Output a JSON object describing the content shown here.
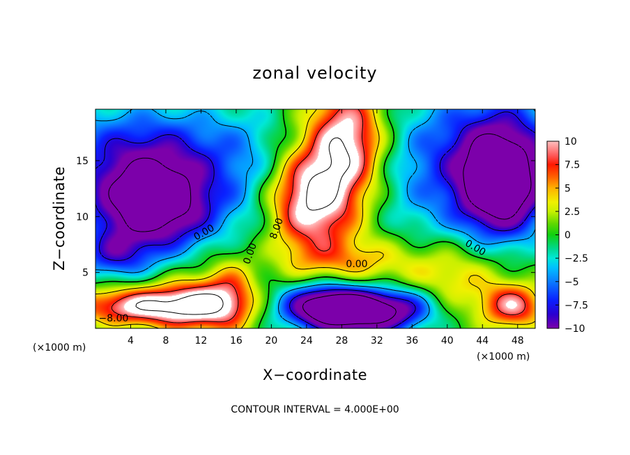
{
  "chart_data": {
    "type": "heatmap",
    "title": "zonal velocity",
    "xlabel": "X−coordinate",
    "ylabel": "Z−coordinate",
    "x_unit_left": "(×1000 m)",
    "x_unit_right": "(×1000 m)",
    "xlim": [
      0,
      50
    ],
    "ylim": [
      0,
      19.6
    ],
    "xticks": [
      4,
      8,
      12,
      16,
      20,
      24,
      28,
      32,
      36,
      40,
      44,
      48
    ],
    "yticks": [
      5,
      10,
      15
    ],
    "colorbar": {
      "range": [
        -10,
        10
      ],
      "ticks": [
        "10",
        "7.5",
        "5",
        "2.5",
        "0",
        "−2.5",
        "−5",
        "−7.5",
        "−10"
      ],
      "stops": [
        [
          -10,
          "#7c00aa"
        ],
        [
          -8.5,
          "#2a00d0"
        ],
        [
          -7,
          "#0a20ff"
        ],
        [
          -5,
          "#0a7cff"
        ],
        [
          -3.5,
          "#00c0ff"
        ],
        [
          -2.5,
          "#00e8d8"
        ],
        [
          -1.5,
          "#00d890"
        ],
        [
          0,
          "#10d010"
        ],
        [
          1.2,
          "#60d800"
        ],
        [
          2.5,
          "#c8f000"
        ],
        [
          3.5,
          "#f0f000"
        ],
        [
          5,
          "#ffb000"
        ],
        [
          6.2,
          "#ff6000"
        ],
        [
          7.5,
          "#ff1800"
        ],
        [
          8.5,
          "#ff5a5a"
        ],
        [
          10,
          "#ffc0c0"
        ]
      ],
      "above_max_color": "#ffffff"
    },
    "field_features": [
      {
        "x": 24.5,
        "z": 11.5,
        "u": 12.0,
        "sx": 3.5,
        "sz": 3.2
      },
      {
        "x": 28.5,
        "z": 17.0,
        "u": 11.0,
        "sx": 3.0,
        "sz": 3.5
      },
      {
        "x": 29.5,
        "z": 6.0,
        "u": 4.5,
        "sx": 6.0,
        "sz": 1.6
      },
      {
        "x": 41.0,
        "z": 4.5,
        "u": 4.0,
        "sx": 4.0,
        "sz": 2.2
      },
      {
        "x": 5.5,
        "z": 2.0,
        "u": 11.0,
        "sx": 5.5,
        "sz": 1.2
      },
      {
        "x": 12.5,
        "z": 2.2,
        "u": 8.0,
        "sx": 3.5,
        "sz": 1.8
      },
      {
        "x": 47.5,
        "z": 2.0,
        "u": 9.0,
        "sx": 2.5,
        "sz": 1.4
      },
      {
        "x": 15.5,
        "z": 3.5,
        "u": 4.0,
        "sx": 2.0,
        "sz": 2.5
      },
      {
        "x": 6.5,
        "z": 11.0,
        "u": -15.0,
        "sx": 5.0,
        "sz": 2.8
      },
      {
        "x": 6.0,
        "z": 16.0,
        "u": -7.0,
        "sx": 9.0,
        "sz": 3.0
      },
      {
        "x": 46.0,
        "z": 12.5,
        "u": -15.0,
        "sx": 3.5,
        "sz": 3.2
      },
      {
        "x": 46.0,
        "z": 17.0,
        "u": -7.0,
        "sx": 5.0,
        "sz": 3.5
      },
      {
        "x": 26.5,
        "z": 2.0,
        "u": -14.0,
        "sx": 3.8,
        "sz": 1.4
      },
      {
        "x": 31.0,
        "z": 1.2,
        "u": -9.0,
        "sx": 4.0,
        "sz": 1.4
      },
      {
        "x": 35.0,
        "z": 2.0,
        "u": -5.0,
        "sx": 3.0,
        "sz": 1.2
      },
      {
        "x": 37.0,
        "z": 14.0,
        "u": -4.0,
        "sx": 4.0,
        "sz": 5.0
      },
      {
        "x": 18.0,
        "z": 12.0,
        "u": -2.0,
        "sx": 3.0,
        "sz": 5.0
      },
      {
        "x": 2.0,
        "z": 6.5,
        "u": -6.0,
        "sx": 3.0,
        "sz": 1.5
      }
    ],
    "contour_interval": "CONTOUR INTERVAL = 4.000E+00",
    "contour_labels": [
      "0.00",
      "8.00",
      "0.00",
      "0.00",
      "0.00",
      "−8.00"
    ]
  }
}
